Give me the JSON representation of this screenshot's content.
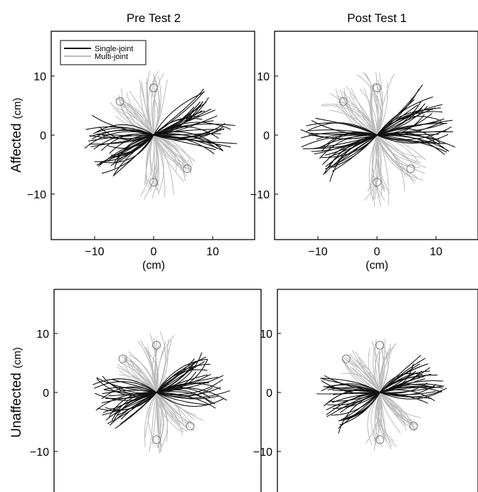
{
  "chart_data": {
    "type": "line",
    "legend": {
      "placement": "top-left",
      "entries": [
        {
          "label": "Single-joint",
          "color": "#111111"
        },
        {
          "label": "Multi-joint",
          "color": "#bbbbbb"
        }
      ]
    },
    "column_titles": [
      "Pre Test 2",
      "Post Test 1"
    ],
    "row_labels": [
      "Affected",
      "Unaffected"
    ],
    "y_unit": "(cm)",
    "x_unit": "(cm)",
    "xlim": [
      -17,
      17
    ],
    "ylim": [
      -17,
      17
    ],
    "ticks": [
      -10,
      0,
      10
    ],
    "tick_labels": [
      "−10",
      "0",
      "10"
    ],
    "targets": [
      [
        0,
        8
      ],
      [
        -5.7,
        5.7
      ],
      [
        5.7,
        -5.7
      ],
      [
        0,
        -8
      ]
    ],
    "grid": false,
    "panels": [
      {
        "title": "Pre Test 2",
        "row": "Affected",
        "legend": true,
        "show_x_axis": true,
        "series": [
          {
            "name": "Single-joint",
            "movements": [
              {
                "angle_deg": 30,
                "length": 10.5,
                "count": 18
              },
              {
                "angle_deg": 210,
                "length": 10.0,
                "count": 18
              },
              {
                "angle_deg": 0,
                "length": 13.0,
                "count": 18
              },
              {
                "angle_deg": 180,
                "length": 11.0,
                "count": 16
              }
            ]
          },
          {
            "name": "Multi-joint",
            "movements": [
              {
                "angle_deg": 90,
                "length": 10.0,
                "count": 16
              },
              {
                "angle_deg": 135,
                "length": 9.0,
                "count": 16
              },
              {
                "angle_deg": 270,
                "length": 10.0,
                "count": 16
              },
              {
                "angle_deg": 315,
                "length": 9.0,
                "count": 16
              }
            ]
          }
        ]
      },
      {
        "title": "Post Test 1",
        "row": "Affected",
        "legend": false,
        "show_x_axis": true,
        "series": [
          {
            "name": "Single-joint",
            "movements": [
              {
                "angle_deg": 30,
                "length": 11.0,
                "count": 18
              },
              {
                "angle_deg": 210,
                "length": 10.5,
                "count": 18
              },
              {
                "angle_deg": 0,
                "length": 12.5,
                "count": 18
              },
              {
                "angle_deg": 180,
                "length": 12.0,
                "count": 16
              }
            ]
          },
          {
            "name": "Multi-joint",
            "movements": [
              {
                "angle_deg": 90,
                "length": 10.0,
                "count": 16
              },
              {
                "angle_deg": 135,
                "length": 10.0,
                "count": 16
              },
              {
                "angle_deg": 270,
                "length": 11.0,
                "count": 16
              },
              {
                "angle_deg": 315,
                "length": 10.0,
                "count": 16
              }
            ]
          }
        ]
      },
      {
        "title": "Pre Test 2",
        "row": "Unaffected",
        "legend": false,
        "show_x_axis": false,
        "series": [
          {
            "name": "Single-joint",
            "movements": [
              {
                "angle_deg": 30,
                "length": 9.5,
                "count": 16
              },
              {
                "angle_deg": 210,
                "length": 9.5,
                "count": 16
              },
              {
                "angle_deg": 0,
                "length": 11.5,
                "count": 16
              },
              {
                "angle_deg": 180,
                "length": 10.0,
                "count": 16
              }
            ]
          },
          {
            "name": "Multi-joint",
            "movements": [
              {
                "angle_deg": 90,
                "length": 9.5,
                "count": 16
              },
              {
                "angle_deg": 135,
                "length": 8.0,
                "count": 16
              },
              {
                "angle_deg": 270,
                "length": 9.5,
                "count": 16
              },
              {
                "angle_deg": 315,
                "length": 8.5,
                "count": 16
              }
            ]
          }
        ]
      },
      {
        "title": "Post Test 1",
        "row": "Unaffected",
        "legend": false,
        "show_x_axis": false,
        "series": [
          {
            "name": "Single-joint",
            "movements": [
              {
                "angle_deg": 30,
                "length": 9.0,
                "count": 16
              },
              {
                "angle_deg": 210,
                "length": 9.0,
                "count": 16
              },
              {
                "angle_deg": 0,
                "length": 10.5,
                "count": 16
              },
              {
                "angle_deg": 180,
                "length": 10.0,
                "count": 16
              }
            ]
          },
          {
            "name": "Multi-joint",
            "movements": [
              {
                "angle_deg": 90,
                "length": 8.5,
                "count": 16
              },
              {
                "angle_deg": 135,
                "length": 8.0,
                "count": 16
              },
              {
                "angle_deg": 270,
                "length": 9.0,
                "count": 16
              },
              {
                "angle_deg": 315,
                "length": 8.0,
                "count": 16
              }
            ]
          }
        ]
      }
    ]
  }
}
